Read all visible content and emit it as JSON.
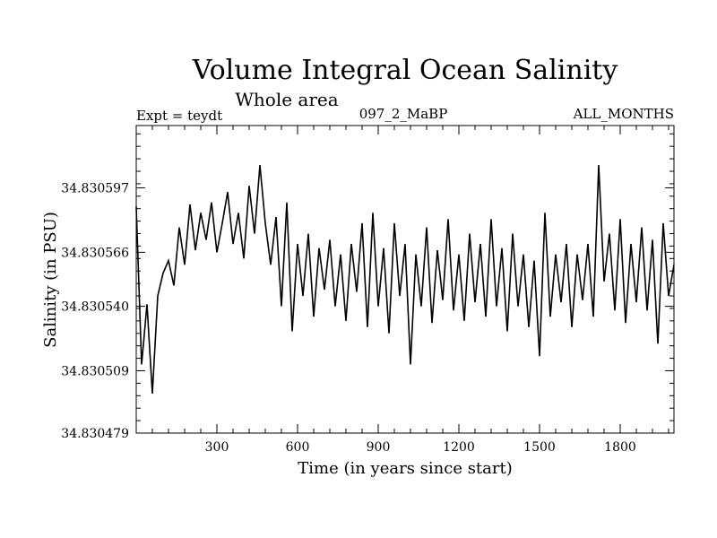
{
  "chart_data": {
    "type": "line",
    "title": "Volume Integral Ocean Salinity",
    "subtitle": "Whole area",
    "annotations": {
      "left": "Expt = teydt",
      "center": "097_2_MaBP",
      "right": "ALL_MONTHS"
    },
    "xlabel": "Time (in years since start)",
    "ylabel": "Salinity (in PSU)",
    "xlim": [
      0,
      2000
    ],
    "ylim": [
      34.830479,
      34.830627
    ],
    "x_ticks": [
      300,
      600,
      900,
      1200,
      1500,
      1800
    ],
    "x_tick_labels": [
      "300",
      "600",
      "900",
      "1200",
      "1500",
      "1800"
    ],
    "y_ticks": [
      34.830479,
      34.830509,
      34.83054,
      34.830566,
      34.830597
    ],
    "y_tick_labels": [
      "34.830479",
      "34.830509",
      "34.830540",
      "34.830566",
      "34.830597"
    ],
    "grid": false,
    "series": [
      {
        "name": "Salinity",
        "color": "#000000",
        "x": [
          0,
          20,
          40,
          60,
          80,
          100,
          120,
          140,
          160,
          180,
          200,
          220,
          240,
          260,
          280,
          300,
          320,
          340,
          360,
          380,
          400,
          420,
          440,
          460,
          480,
          500,
          520,
          540,
          560,
          580,
          600,
          620,
          640,
          660,
          680,
          700,
          720,
          740,
          760,
          780,
          800,
          820,
          840,
          860,
          880,
          900,
          920,
          940,
          960,
          980,
          1000,
          1020,
          1040,
          1060,
          1080,
          1100,
          1120,
          1140,
          1160,
          1180,
          1200,
          1220,
          1240,
          1260,
          1280,
          1300,
          1320,
          1340,
          1360,
          1380,
          1400,
          1420,
          1440,
          1460,
          1480,
          1500,
          1520,
          1540,
          1560,
          1580,
          1600,
          1620,
          1640,
          1660,
          1680,
          1700,
          1720,
          1740,
          1760,
          1780,
          1800,
          1820,
          1840,
          1860,
          1880,
          1900,
          1920,
          1940,
          1960,
          1980,
          2000
        ],
        "values": [
          34.830588,
          34.830512,
          34.830541,
          34.830498,
          34.830545,
          34.830556,
          34.830562,
          34.83055,
          34.830578,
          34.83056,
          34.830589,
          34.830567,
          34.830585,
          34.830572,
          34.83059,
          34.830566,
          34.83058,
          34.830595,
          34.83057,
          34.830585,
          34.830563,
          34.830598,
          34.830575,
          34.830608,
          34.83058,
          34.83056,
          34.830583,
          34.83054,
          34.83059,
          34.830528,
          34.83057,
          34.830545,
          34.830575,
          34.830535,
          34.830568,
          34.830548,
          34.830572,
          34.83054,
          34.830565,
          34.830533,
          34.83057,
          34.830547,
          34.83058,
          34.83053,
          34.830585,
          34.83054,
          34.830568,
          34.830527,
          34.83058,
          34.830545,
          34.83057,
          34.830512,
          34.830565,
          34.83054,
          34.830578,
          34.830532,
          34.830567,
          34.830543,
          34.830582,
          34.830538,
          34.830565,
          34.830533,
          34.830575,
          34.830542,
          34.83057,
          34.830535,
          34.830582,
          34.83054,
          34.830568,
          34.830528,
          34.830575,
          34.83054,
          34.830565,
          34.83053,
          34.830562,
          34.830516,
          34.830585,
          34.830535,
          34.830565,
          34.830542,
          34.83057,
          34.83053,
          34.830565,
          34.830543,
          34.83057,
          34.830535,
          34.830608,
          34.830552,
          34.830575,
          34.830538,
          34.830582,
          34.830532,
          34.83057,
          34.830542,
          34.830578,
          34.830538,
          34.830572,
          34.830522,
          34.83058,
          34.830545,
          34.83056
        ]
      }
    ]
  }
}
